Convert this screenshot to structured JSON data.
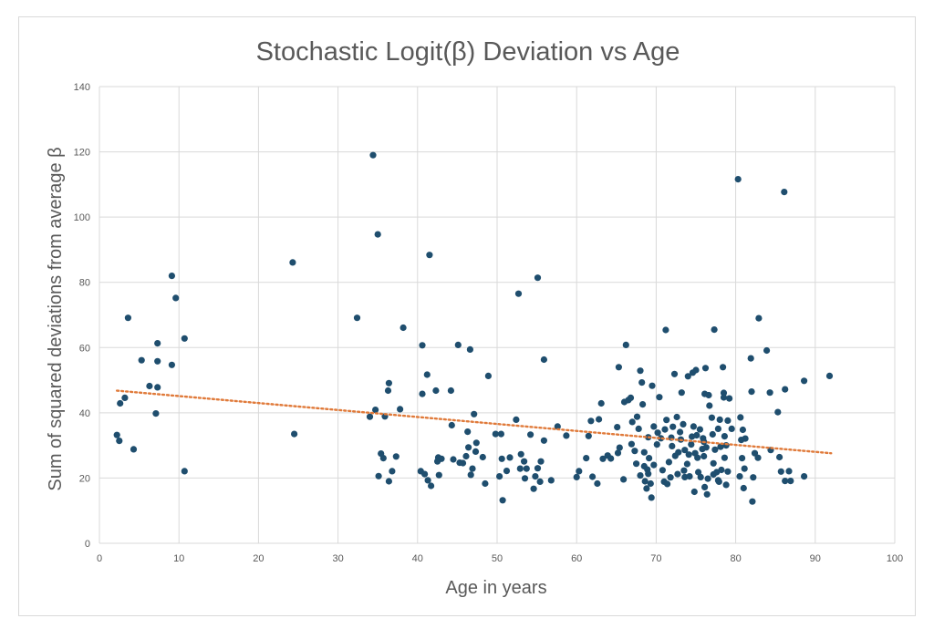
{
  "chart_data": {
    "type": "scatter",
    "title": "Stochastic Logit(β) Deviation vs Age",
    "xlabel": "Age in years",
    "ylabel": "Sum of squared deviations from average β",
    "xlim": [
      0,
      100
    ],
    "ylim": [
      0,
      140
    ],
    "xticks": [
      0,
      10,
      20,
      30,
      40,
      50,
      60,
      70,
      80,
      90,
      100
    ],
    "yticks": [
      0,
      20,
      40,
      60,
      80,
      100,
      120,
      140
    ],
    "grid": true,
    "legend": "none",
    "colors": {
      "points": "#1f4e6e",
      "trend": "#e07a3a",
      "grid": "#d9d9d9",
      "text": "#595959"
    },
    "trendline": {
      "style": "dotted linear",
      "x": [
        2.2,
        92
      ],
      "y": [
        46.8,
        27.6
      ]
    },
    "series": [
      {
        "points": [
          [
            2.2,
            33.2
          ],
          [
            2.5,
            31.4
          ],
          [
            2.6,
            42.9
          ],
          [
            3.2,
            44.6
          ],
          [
            3.6,
            69.1
          ],
          [
            4.3,
            28.8
          ],
          [
            5.3,
            56.1
          ],
          [
            6.3,
            48.2
          ],
          [
            7.1,
            39.8
          ],
          [
            7.3,
            47.8
          ],
          [
            7.3,
            61.3
          ],
          [
            7.3,
            55.8
          ],
          [
            9.1,
            82.0
          ],
          [
            9.1,
            54.7
          ],
          [
            9.6,
            75.2
          ],
          [
            10.7,
            62.8
          ],
          [
            10.7,
            22.1
          ],
          [
            24.3,
            86.1
          ],
          [
            24.5,
            33.5
          ],
          [
            32.4,
            69.1
          ],
          [
            34.0,
            38.8
          ],
          [
            34.4,
            119.0
          ],
          [
            34.7,
            40.9
          ],
          [
            35.0,
            94.7
          ],
          [
            35.1,
            20.6
          ],
          [
            35.4,
            27.5
          ],
          [
            35.7,
            26.1
          ],
          [
            35.9,
            38.9
          ],
          [
            36.3,
            46.8
          ],
          [
            36.4,
            49.1
          ],
          [
            36.4,
            19.0
          ],
          [
            36.8,
            22.1
          ],
          [
            37.3,
            26.6
          ],
          [
            37.8,
            41.1
          ],
          [
            38.2,
            66.1
          ],
          [
            40.4,
            22.1
          ],
          [
            40.6,
            60.7
          ],
          [
            40.6,
            45.8
          ],
          [
            40.9,
            21.2
          ],
          [
            41.2,
            51.7
          ],
          [
            41.3,
            19.3
          ],
          [
            41.5,
            88.4
          ],
          [
            41.7,
            17.6
          ],
          [
            42.3,
            46.8
          ],
          [
            42.5,
            25.1
          ],
          [
            42.6,
            26.3
          ],
          [
            42.7,
            20.9
          ],
          [
            43.0,
            25.9
          ],
          [
            44.2,
            46.8
          ],
          [
            44.3,
            36.2
          ],
          [
            44.5,
            25.7
          ],
          [
            45.1,
            60.8
          ],
          [
            45.3,
            24.7
          ],
          [
            45.7,
            24.6
          ],
          [
            46.1,
            26.7
          ],
          [
            46.3,
            34.2
          ],
          [
            46.4,
            29.4
          ],
          [
            46.6,
            59.4
          ],
          [
            46.7,
            21.0
          ],
          [
            46.9,
            22.9
          ],
          [
            47.1,
            39.6
          ],
          [
            47.3,
            28.1
          ],
          [
            47.4,
            30.8
          ],
          [
            48.2,
            26.4
          ],
          [
            48.5,
            18.3
          ],
          [
            48.9,
            51.3
          ],
          [
            49.8,
            33.5
          ],
          [
            50.3,
            20.5
          ],
          [
            50.5,
            33.5
          ],
          [
            50.6,
            25.9
          ],
          [
            50.7,
            13.2
          ],
          [
            51.2,
            22.2
          ],
          [
            51.6,
            26.3
          ],
          [
            52.4,
            37.9
          ],
          [
            52.7,
            76.5
          ],
          [
            52.9,
            22.9
          ],
          [
            53.0,
            27.3
          ],
          [
            53.4,
            25.1
          ],
          [
            53.5,
            19.9
          ],
          [
            53.7,
            22.9
          ],
          [
            54.2,
            33.3
          ],
          [
            54.6,
            16.7
          ],
          [
            54.8,
            20.5
          ],
          [
            55.1,
            23.0
          ],
          [
            55.1,
            81.4
          ],
          [
            55.4,
            18.9
          ],
          [
            55.5,
            25.1
          ],
          [
            55.9,
            56.3
          ],
          [
            55.9,
            31.5
          ],
          [
            56.8,
            19.3
          ],
          [
            57.6,
            35.8
          ],
          [
            58.7,
            33.0
          ],
          [
            60.0,
            20.3
          ],
          [
            60.3,
            22.1
          ],
          [
            61.2,
            26.1
          ],
          [
            61.5,
            32.9
          ],
          [
            61.8,
            37.5
          ],
          [
            62.0,
            20.4
          ],
          [
            62.6,
            18.3
          ],
          [
            62.8,
            38.0
          ],
          [
            63.1,
            42.9
          ],
          [
            63.3,
            25.9
          ],
          [
            63.9,
            26.9
          ],
          [
            64.3,
            26.0
          ],
          [
            65.1,
            35.6
          ],
          [
            65.2,
            27.7
          ],
          [
            65.3,
            54.0
          ],
          [
            65.4,
            29.3
          ],
          [
            65.9,
            19.6
          ],
          [
            66.0,
            43.3
          ],
          [
            66.2,
            60.8
          ],
          [
            66.5,
            43.9
          ],
          [
            66.8,
            44.6
          ],
          [
            66.9,
            30.4
          ],
          [
            67.0,
            37.2
          ],
          [
            67.3,
            28.3
          ],
          [
            67.5,
            24.4
          ],
          [
            67.6,
            38.8
          ],
          [
            67.8,
            35.1
          ],
          [
            68.0,
            20.8
          ],
          [
            68.0,
            52.9
          ],
          [
            68.2,
            49.3
          ],
          [
            68.3,
            42.6
          ],
          [
            68.5,
            27.9
          ],
          [
            68.5,
            23.6
          ],
          [
            68.6,
            19.0
          ],
          [
            68.8,
            16.8
          ],
          [
            68.9,
            22.6
          ],
          [
            69.0,
            32.5
          ],
          [
            69.0,
            21.3
          ],
          [
            69.1,
            26.1
          ],
          [
            69.3,
            18.3
          ],
          [
            69.4,
            14.0
          ],
          [
            69.5,
            48.3
          ],
          [
            69.7,
            24.0
          ],
          [
            69.7,
            35.8
          ],
          [
            70.1,
            30.3
          ],
          [
            70.2,
            33.9
          ],
          [
            70.4,
            44.8
          ],
          [
            70.6,
            32.2
          ],
          [
            70.8,
            22.4
          ],
          [
            71.0,
            18.9
          ],
          [
            71.1,
            34.9
          ],
          [
            71.2,
            65.4
          ],
          [
            71.3,
            37.8
          ],
          [
            71.4,
            18.2
          ],
          [
            71.6,
            24.9
          ],
          [
            71.8,
            20.2
          ],
          [
            71.9,
            32.4
          ],
          [
            72.0,
            29.8
          ],
          [
            72.1,
            35.7
          ],
          [
            72.3,
            51.9
          ],
          [
            72.4,
            26.8
          ],
          [
            72.6,
            38.7
          ],
          [
            72.7,
            21.2
          ],
          [
            72.8,
            27.9
          ],
          [
            73.0,
            34.1
          ],
          [
            73.1,
            31.8
          ],
          [
            73.2,
            46.2
          ],
          [
            73.4,
            36.5
          ],
          [
            73.5,
            22.3
          ],
          [
            73.6,
            20.3
          ],
          [
            73.6,
            28.6
          ],
          [
            73.9,
            24.3
          ],
          [
            74.0,
            51.2
          ],
          [
            74.1,
            27.2
          ],
          [
            74.2,
            20.5
          ],
          [
            74.4,
            30.3
          ],
          [
            74.5,
            32.7
          ],
          [
            74.6,
            52.3
          ],
          [
            74.7,
            35.8
          ],
          [
            74.8,
            15.8
          ],
          [
            74.9,
            27.6
          ],
          [
            75.0,
            53.1
          ],
          [
            75.1,
            33.1
          ],
          [
            75.2,
            26.2
          ],
          [
            75.3,
            21.8
          ],
          [
            75.5,
            34.9
          ],
          [
            75.6,
            20.3
          ],
          [
            75.8,
            28.9
          ],
          [
            75.9,
            32.2
          ],
          [
            76.0,
            31.1
          ],
          [
            76.0,
            26.7
          ],
          [
            76.1,
            45.8
          ],
          [
            76.1,
            17.2
          ],
          [
            76.2,
            53.7
          ],
          [
            76.3,
            29.4
          ],
          [
            76.4,
            15.0
          ],
          [
            76.5,
            19.8
          ],
          [
            76.6,
            45.4
          ],
          [
            76.7,
            42.2
          ],
          [
            77.0,
            38.5
          ],
          [
            77.1,
            33.4
          ],
          [
            77.2,
            24.5
          ],
          [
            77.2,
            21.1
          ],
          [
            77.3,
            65.5
          ],
          [
            77.4,
            28.7
          ],
          [
            77.6,
            21.8
          ],
          [
            77.8,
            35.1
          ],
          [
            77.8,
            19.3
          ],
          [
            77.9,
            18.9
          ],
          [
            78.0,
            37.9
          ],
          [
            78.1,
            29.6
          ],
          [
            78.2,
            22.5
          ],
          [
            78.4,
            54.0
          ],
          [
            78.5,
            46.1
          ],
          [
            78.5,
            44.7
          ],
          [
            78.6,
            32.8
          ],
          [
            78.6,
            26.2
          ],
          [
            78.8,
            30.0
          ],
          [
            78.8,
            17.9
          ],
          [
            79.0,
            37.6
          ],
          [
            79.0,
            22.0
          ],
          [
            79.2,
            44.4
          ],
          [
            79.5,
            35.1
          ],
          [
            80.3,
            111.6
          ],
          [
            80.5,
            20.5
          ],
          [
            80.6,
            38.6
          ],
          [
            80.7,
            31.7
          ],
          [
            80.8,
            26.1
          ],
          [
            80.9,
            34.8
          ],
          [
            81.0,
            16.9
          ],
          [
            81.1,
            22.9
          ],
          [
            81.2,
            32.1
          ],
          [
            81.9,
            56.7
          ],
          [
            82.0,
            46.5
          ],
          [
            82.1,
            12.8
          ],
          [
            82.2,
            20.2
          ],
          [
            82.4,
            27.6
          ],
          [
            82.8,
            26.2
          ],
          [
            82.9,
            69.0
          ],
          [
            83.9,
            59.1
          ],
          [
            84.3,
            46.2
          ],
          [
            84.4,
            28.6
          ],
          [
            85.3,
            40.2
          ],
          [
            85.5,
            26.4
          ],
          [
            85.7,
            22.0
          ],
          [
            86.1,
            107.7
          ],
          [
            86.2,
            47.2
          ],
          [
            86.2,
            19.1
          ],
          [
            86.7,
            22.1
          ],
          [
            86.9,
            19.1
          ],
          [
            88.6,
            49.8
          ],
          [
            88.6,
            20.5
          ],
          [
            91.8,
            51.3
          ]
        ]
      }
    ]
  }
}
